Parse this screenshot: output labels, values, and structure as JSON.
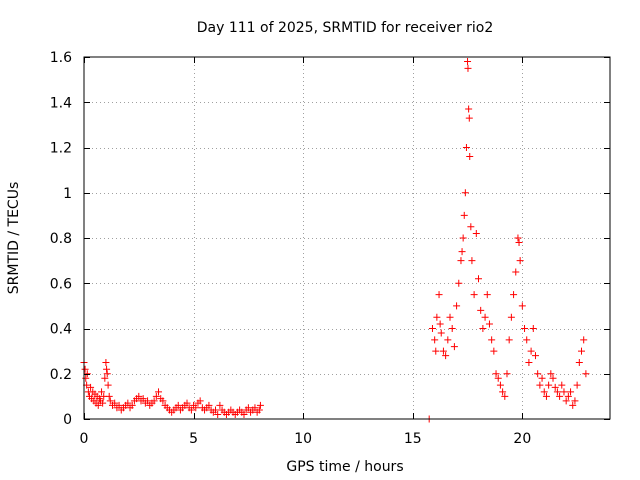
{
  "chart_data": {
    "type": "scatter",
    "title": "Day 111 of 2025, SRMTID for receiver rio2",
    "xlabel": "GPS time / hours",
    "ylabel": "SRMTID / TECUs",
    "xlim": [
      0,
      24
    ],
    "ylim": [
      0,
      1.6
    ],
    "xticks": [
      0,
      5,
      10,
      15,
      20
    ],
    "xtick_labels": [
      "0",
      "5",
      "10",
      "15",
      "20"
    ],
    "yticks": [
      0,
      0.2,
      0.4,
      0.6,
      0.8,
      1.0,
      1.2,
      1.4,
      1.6
    ],
    "ytick_labels": [
      "0",
      "0.2",
      "0.4",
      "0.6",
      "0.8",
      "1",
      "1.2",
      "1.4",
      "1.6"
    ],
    "grid": true,
    "marker": "+",
    "color": "#ff0000",
    "series": [
      {
        "name": "rio2",
        "points": [
          [
            0.0,
            0.25
          ],
          [
            0.05,
            0.22
          ],
          [
            0.08,
            0.18
          ],
          [
            0.12,
            0.15
          ],
          [
            0.15,
            0.2
          ],
          [
            0.2,
            0.12
          ],
          [
            0.25,
            0.1
          ],
          [
            0.3,
            0.14
          ],
          [
            0.35,
            0.09
          ],
          [
            0.4,
            0.12
          ],
          [
            0.45,
            0.08
          ],
          [
            0.5,
            0.11
          ],
          [
            0.55,
            0.07
          ],
          [
            0.6,
            0.1
          ],
          [
            0.65,
            0.06
          ],
          [
            0.7,
            0.09
          ],
          [
            0.75,
            0.08
          ],
          [
            0.8,
            0.12
          ],
          [
            0.85,
            0.07
          ],
          [
            0.9,
            0.1
          ],
          [
            0.95,
            0.18
          ],
          [
            1.0,
            0.25
          ],
          [
            1.03,
            0.22
          ],
          [
            1.06,
            0.2
          ],
          [
            1.1,
            0.15
          ],
          [
            1.15,
            0.1
          ],
          [
            1.2,
            0.08
          ],
          [
            1.3,
            0.06
          ],
          [
            1.4,
            0.07
          ],
          [
            1.5,
            0.05
          ],
          [
            1.6,
            0.06
          ],
          [
            1.7,
            0.04
          ],
          [
            1.8,
            0.05
          ],
          [
            1.9,
            0.06
          ],
          [
            2.0,
            0.07
          ],
          [
            2.1,
            0.05
          ],
          [
            2.2,
            0.06
          ],
          [
            2.3,
            0.08
          ],
          [
            2.4,
            0.09
          ],
          [
            2.5,
            0.1
          ],
          [
            2.6,
            0.08
          ],
          [
            2.7,
            0.09
          ],
          [
            2.8,
            0.07
          ],
          [
            2.9,
            0.08
          ],
          [
            3.0,
            0.06
          ],
          [
            3.1,
            0.07
          ],
          [
            3.2,
            0.08
          ],
          [
            3.3,
            0.1
          ],
          [
            3.4,
            0.12
          ],
          [
            3.5,
            0.09
          ],
          [
            3.6,
            0.08
          ],
          [
            3.7,
            0.06
          ],
          [
            3.8,
            0.05
          ],
          [
            3.9,
            0.04
          ],
          [
            4.0,
            0.03
          ],
          [
            4.1,
            0.04
          ],
          [
            4.2,
            0.05
          ],
          [
            4.3,
            0.06
          ],
          [
            4.4,
            0.04
          ],
          [
            4.5,
            0.05
          ],
          [
            4.6,
            0.06
          ],
          [
            4.7,
            0.07
          ],
          [
            4.8,
            0.05
          ],
          [
            4.9,
            0.04
          ],
          [
            5.0,
            0.06
          ],
          [
            5.1,
            0.05
          ],
          [
            5.2,
            0.07
          ],
          [
            5.3,
            0.08
          ],
          [
            5.4,
            0.05
          ],
          [
            5.5,
            0.04
          ],
          [
            5.6,
            0.05
          ],
          [
            5.7,
            0.06
          ],
          [
            5.8,
            0.04
          ],
          [
            5.9,
            0.03
          ],
          [
            6.0,
            0.04
          ],
          [
            6.1,
            0.02
          ],
          [
            6.2,
            0.06
          ],
          [
            6.3,
            0.04
          ],
          [
            6.4,
            0.03
          ],
          [
            6.5,
            0.02
          ],
          [
            6.6,
            0.03
          ],
          [
            6.7,
            0.04
          ],
          [
            6.8,
            0.03
          ],
          [
            6.9,
            0.02
          ],
          [
            7.0,
            0.03
          ],
          [
            7.1,
            0.04
          ],
          [
            7.2,
            0.03
          ],
          [
            7.3,
            0.02
          ],
          [
            7.4,
            0.04
          ],
          [
            7.5,
            0.05
          ],
          [
            7.6,
            0.03
          ],
          [
            7.7,
            0.04
          ],
          [
            7.8,
            0.05
          ],
          [
            7.9,
            0.03
          ],
          [
            8.0,
            0.04
          ],
          [
            8.05,
            0.06
          ],
          [
            15.75,
            0.0
          ],
          [
            15.9,
            0.4
          ],
          [
            16.0,
            0.35
          ],
          [
            16.05,
            0.3
          ],
          [
            16.1,
            0.45
          ],
          [
            16.2,
            0.55
          ],
          [
            16.25,
            0.42
          ],
          [
            16.3,
            0.38
          ],
          [
            16.4,
            0.3
          ],
          [
            16.5,
            0.28
          ],
          [
            16.6,
            0.35
          ],
          [
            16.7,
            0.45
          ],
          [
            16.8,
            0.4
          ],
          [
            16.9,
            0.32
          ],
          [
            17.0,
            0.5
          ],
          [
            17.1,
            0.6
          ],
          [
            17.2,
            0.7
          ],
          [
            17.25,
            0.74
          ],
          [
            17.3,
            0.8
          ],
          [
            17.35,
            0.9
          ],
          [
            17.4,
            1.0
          ],
          [
            17.45,
            1.2
          ],
          [
            17.5,
            1.58
          ],
          [
            17.52,
            1.55
          ],
          [
            17.55,
            1.37
          ],
          [
            17.58,
            1.33
          ],
          [
            17.6,
            1.16
          ],
          [
            17.65,
            0.85
          ],
          [
            17.7,
            0.7
          ],
          [
            17.8,
            0.55
          ],
          [
            17.9,
            0.82
          ],
          [
            18.0,
            0.62
          ],
          [
            18.1,
            0.48
          ],
          [
            18.2,
            0.4
          ],
          [
            18.3,
            0.45
          ],
          [
            18.4,
            0.55
          ],
          [
            18.5,
            0.42
          ],
          [
            18.6,
            0.35
          ],
          [
            18.7,
            0.3
          ],
          [
            18.8,
            0.2
          ],
          [
            18.9,
            0.18
          ],
          [
            19.0,
            0.15
          ],
          [
            19.1,
            0.12
          ],
          [
            19.2,
            0.1
          ],
          [
            19.3,
            0.2
          ],
          [
            19.4,
            0.35
          ],
          [
            19.5,
            0.45
          ],
          [
            19.6,
            0.55
          ],
          [
            19.7,
            0.65
          ],
          [
            19.8,
            0.8
          ],
          [
            19.85,
            0.78
          ],
          [
            19.9,
            0.7
          ],
          [
            20.0,
            0.5
          ],
          [
            20.1,
            0.4
          ],
          [
            20.2,
            0.35
          ],
          [
            20.3,
            0.25
          ],
          [
            20.4,
            0.3
          ],
          [
            20.5,
            0.4
          ],
          [
            20.6,
            0.28
          ],
          [
            20.7,
            0.2
          ],
          [
            20.8,
            0.15
          ],
          [
            20.9,
            0.18
          ],
          [
            21.0,
            0.12
          ],
          [
            21.1,
            0.1
          ],
          [
            21.2,
            0.15
          ],
          [
            21.3,
            0.2
          ],
          [
            21.4,
            0.18
          ],
          [
            21.5,
            0.14
          ],
          [
            21.6,
            0.12
          ],
          [
            21.7,
            0.1
          ],
          [
            21.8,
            0.15
          ],
          [
            21.9,
            0.12
          ],
          [
            22.0,
            0.08
          ],
          [
            22.1,
            0.1
          ],
          [
            22.2,
            0.12
          ],
          [
            22.3,
            0.06
          ],
          [
            22.4,
            0.08
          ],
          [
            22.5,
            0.15
          ],
          [
            22.6,
            0.25
          ],
          [
            22.7,
            0.3
          ],
          [
            22.8,
            0.35
          ],
          [
            22.9,
            0.2
          ]
        ]
      }
    ]
  }
}
